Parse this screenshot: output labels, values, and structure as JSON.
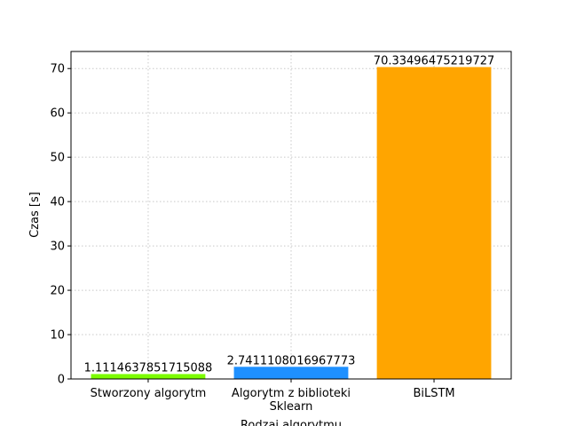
{
  "chart_data": {
    "type": "bar",
    "categories": [
      "Stworzony algorytm",
      "Algorytm z biblioteki\nSklearn",
      "BiLSTM"
    ],
    "values": [
      1.1114637851715088,
      2.7411108016967773,
      70.33496475219727
    ],
    "colors": [
      "#7cfc00",
      "#1e90ff",
      "#ffa500"
    ],
    "xlabel": "Rodzaj algorytmu",
    "ylabel": "Czas [s]",
    "ylim": [
      0,
      73.85
    ],
    "yticks": [
      0,
      10,
      20,
      30,
      40,
      50,
      60,
      70
    ],
    "grid": true
  }
}
